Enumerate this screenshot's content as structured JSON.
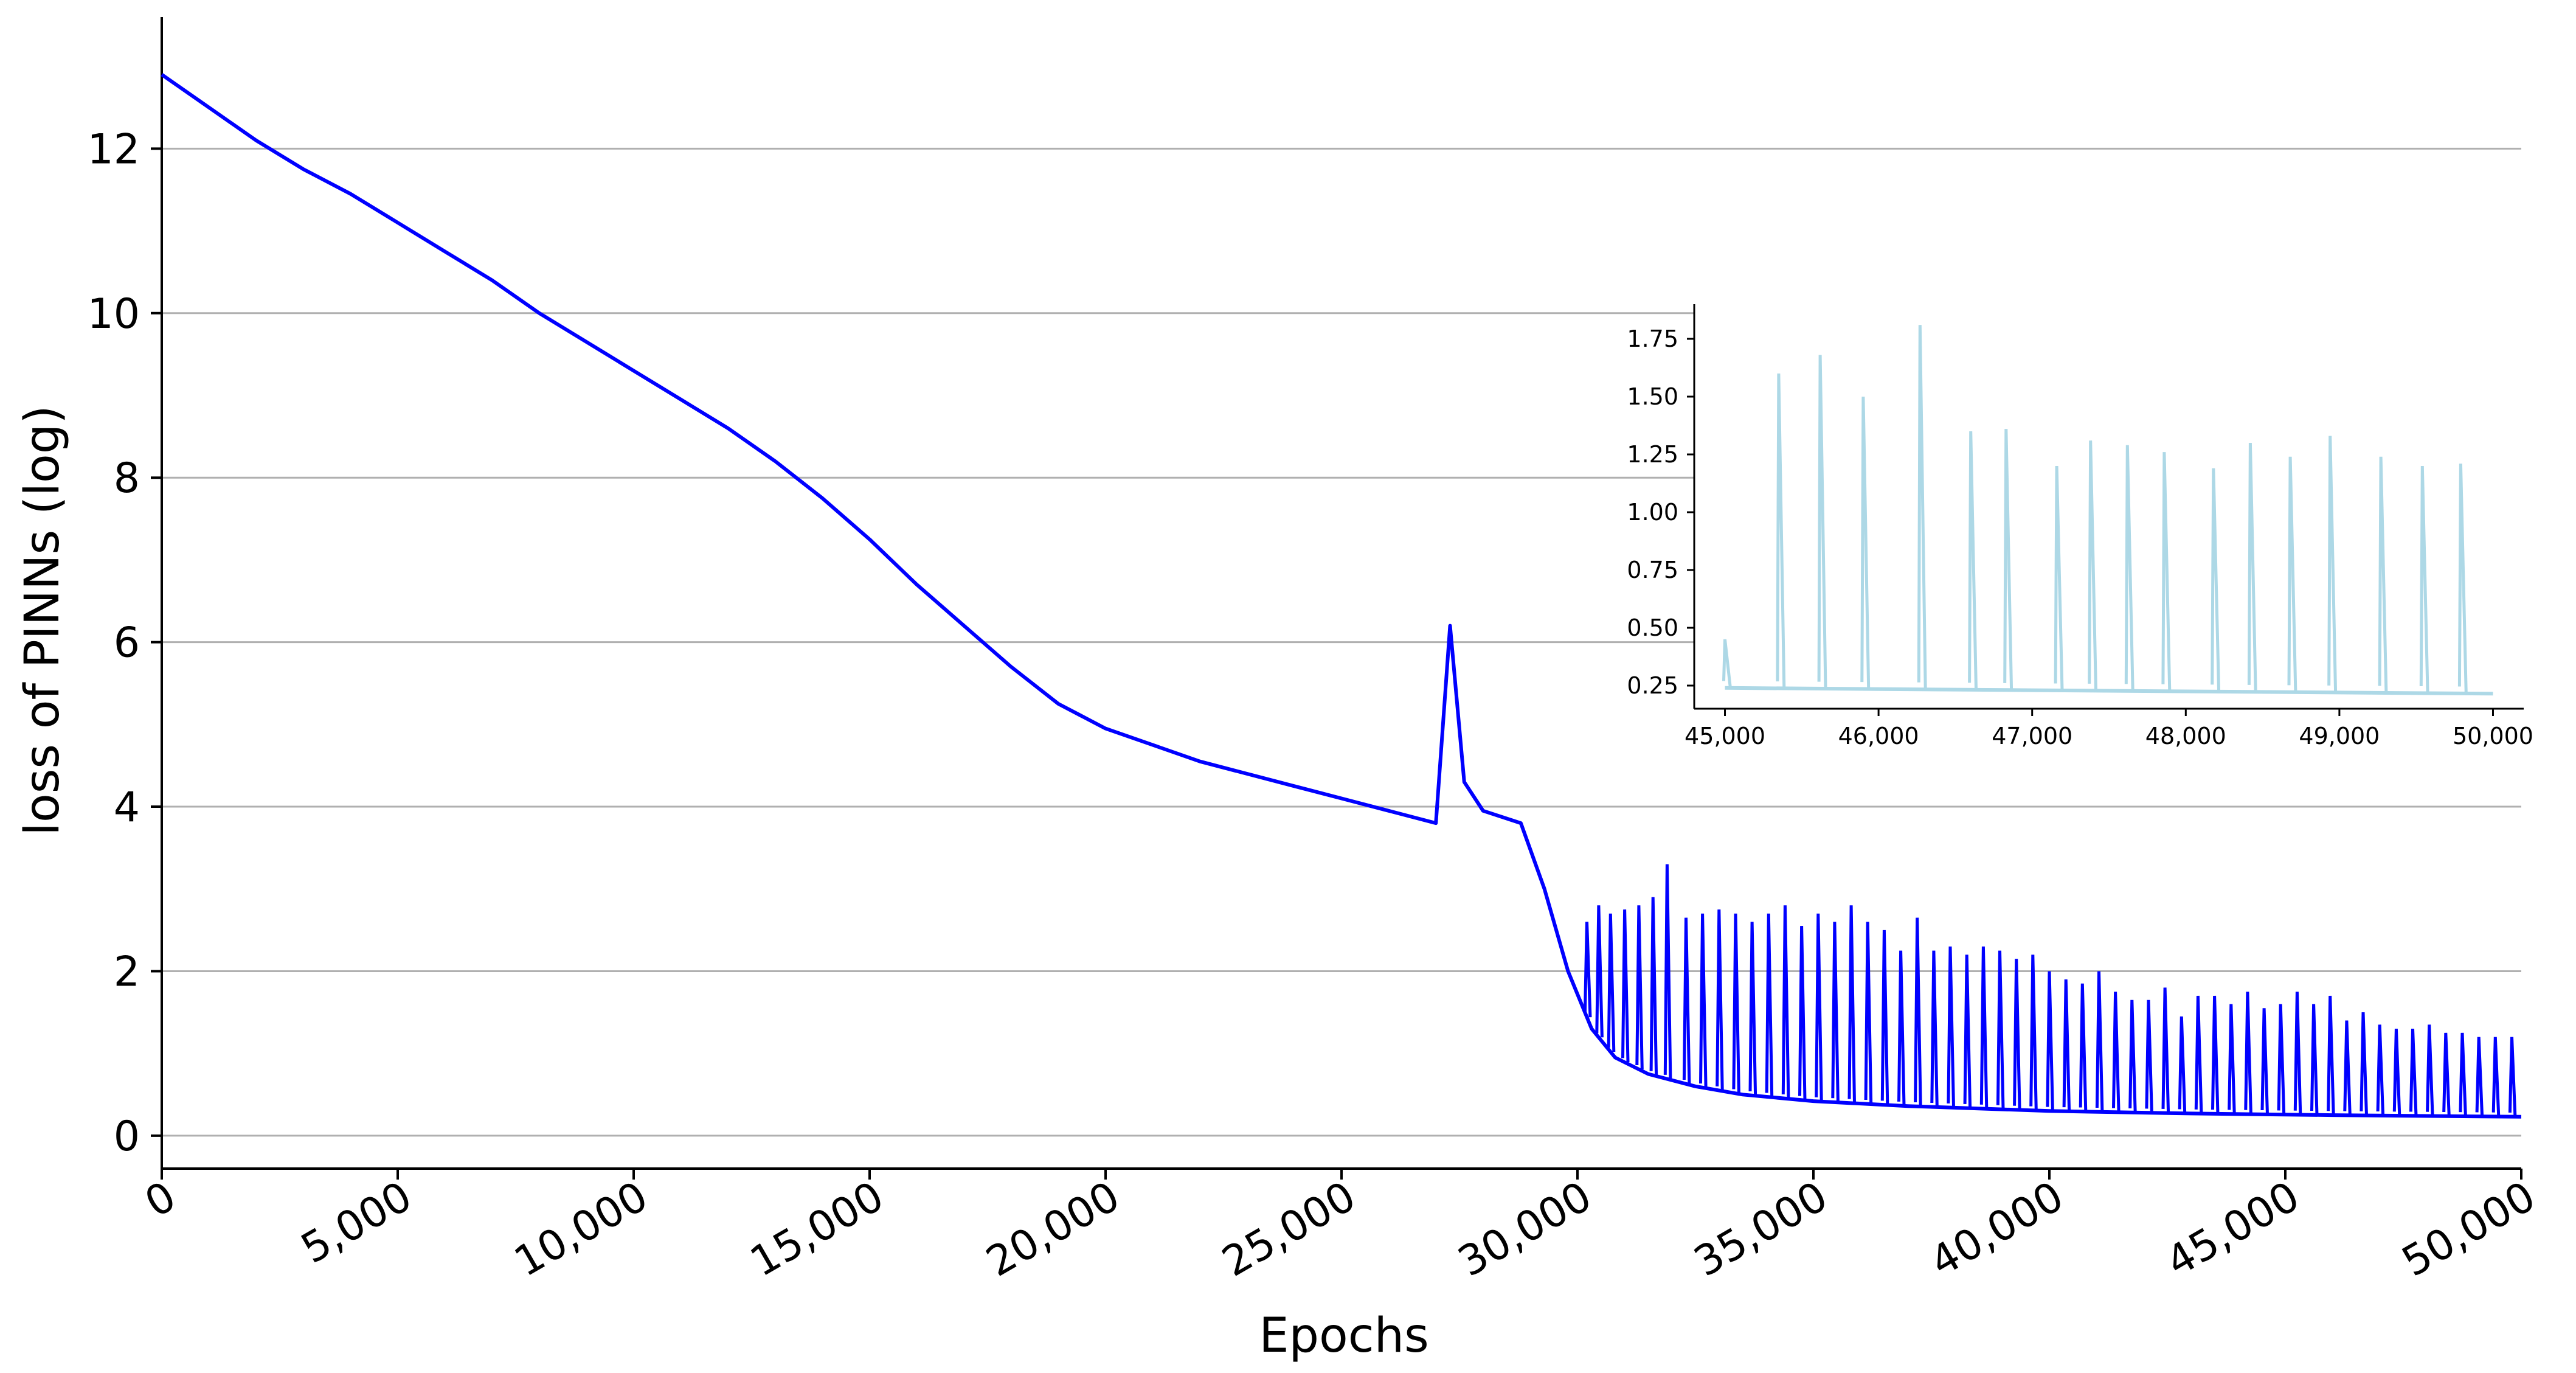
{
  "chart_data": [
    {
      "type": "line",
      "role": "main",
      "xlabel": "Epochs",
      "ylabel": "loss of PINNs (log)",
      "xlim": [
        0,
        50000
      ],
      "ylim": [
        -0.4,
        13.6
      ],
      "x_ticks": [
        0,
        5000,
        10000,
        15000,
        20000,
        25000,
        30000,
        35000,
        40000,
        45000,
        50000
      ],
      "x_tick_labels": [
        "0",
        "5,000",
        "10,000",
        "15,000",
        "20,000",
        "25,000",
        "30,000",
        "35,000",
        "40,000",
        "45,000",
        "50,000"
      ],
      "y_ticks": [
        0,
        2,
        4,
        6,
        8,
        10,
        12
      ],
      "y_tick_labels": [
        "0",
        "2",
        "4",
        "6",
        "8",
        "10",
        "12"
      ],
      "grid": "horizontal",
      "color": "#0000ff",
      "series": [
        {
          "x": [
            0,
            1000,
            2000,
            3000,
            4000,
            5000,
            6000,
            7000,
            8000,
            9000,
            10000,
            11000,
            12000,
            13000,
            14000,
            15000,
            16000,
            17000,
            18000,
            19000,
            20000,
            21000,
            22000,
            23000,
            24000,
            25000,
            26000,
            27000,
            27300,
            27600,
            28000,
            28800,
            29300,
            29800,
            30300,
            30800,
            31500,
            32500,
            33500,
            35000,
            37000,
            40000,
            43000,
            46000,
            50000
          ],
          "y": [
            12.9,
            12.5,
            12.1,
            11.75,
            11.45,
            11.1,
            10.75,
            10.4,
            10.0,
            9.65,
            9.3,
            8.95,
            8.6,
            8.2,
            7.75,
            7.25,
            6.7,
            6.2,
            5.7,
            5.25,
            4.95,
            4.75,
            4.55,
            4.4,
            4.25,
            4.1,
            3.95,
            3.8,
            6.2,
            4.3,
            3.95,
            3.8,
            3.0,
            2.0,
            1.3,
            0.95,
            0.75,
            0.6,
            0.5,
            0.42,
            0.36,
            0.3,
            0.27,
            0.25,
            0.23
          ]
        }
      ],
      "spikes": {
        "x": [
          30200,
          30450,
          30700,
          31000,
          31300,
          31600,
          31900,
          32300,
          32650,
          33000,
          33350,
          33700,
          34050,
          34400,
          34750,
          35100,
          35450,
          35800,
          36150,
          36500,
          36850,
          37200,
          37550,
          37900,
          38250,
          38600,
          38950,
          39300,
          39650,
          40000,
          40350,
          40700,
          41050,
          41400,
          41750,
          42100,
          42450,
          42800,
          43150,
          43500,
          43850,
          44200,
          44550,
          44900,
          45250,
          45600,
          45950,
          46300,
          46650,
          47000,
          47350,
          47700,
          48050,
          48400,
          48750,
          49100,
          49450,
          49800
        ],
        "y": [
          2.6,
          2.8,
          2.7,
          2.75,
          2.8,
          2.9,
          3.3,
          2.65,
          2.7,
          2.75,
          2.7,
          2.6,
          2.7,
          2.8,
          2.55,
          2.7,
          2.6,
          2.8,
          2.6,
          2.5,
          2.25,
          2.65,
          2.25,
          2.3,
          2.2,
          2.3,
          2.25,
          2.15,
          2.2,
          2.0,
          1.9,
          1.85,
          2.0,
          1.75,
          1.65,
          1.65,
          1.8,
          1.45,
          1.7,
          1.7,
          1.6,
          1.75,
          1.55,
          1.6,
          1.75,
          1.6,
          1.7,
          1.4,
          1.5,
          1.35,
          1.3,
          1.3,
          1.35,
          1.25,
          1.25,
          1.2,
          1.2,
          1.2
        ]
      }
    },
    {
      "type": "line",
      "role": "inset",
      "xlim": [
        44800,
        50200
      ],
      "ylim": [
        0.15,
        1.9
      ],
      "x_ticks": [
        45000,
        46000,
        47000,
        48000,
        49000,
        50000
      ],
      "x_tick_labels": [
        "45,000",
        "46,000",
        "47,000",
        "48,000",
        "49,000",
        "50,000"
      ],
      "y_ticks": [
        0.25,
        0.5,
        0.75,
        1.0,
        1.25,
        1.5,
        1.75
      ],
      "y_tick_labels": [
        "0.25",
        "0.50",
        "0.75",
        "1.00",
        "1.25",
        "1.50",
        "1.75"
      ],
      "grid": "off",
      "color": "#add8e6",
      "baseline": [
        [
          45000,
          0.24
        ],
        [
          46000,
          0.235
        ],
        [
          47000,
          0.23
        ],
        [
          48000,
          0.225
        ],
        [
          49000,
          0.22
        ],
        [
          50000,
          0.215
        ]
      ],
      "spikes": {
        "x": [
          45000,
          45350,
          45620,
          45900,
          46270,
          46600,
          46830,
          47160,
          47380,
          47620,
          47860,
          48180,
          48420,
          48680,
          48940,
          49270,
          49540,
          49790
        ],
        "y": [
          0.45,
          1.6,
          1.68,
          1.5,
          1.81,
          1.35,
          1.36,
          1.2,
          1.31,
          1.29,
          1.26,
          1.19,
          1.3,
          1.24,
          1.33,
          1.24,
          1.2,
          1.21
        ]
      }
    }
  ]
}
